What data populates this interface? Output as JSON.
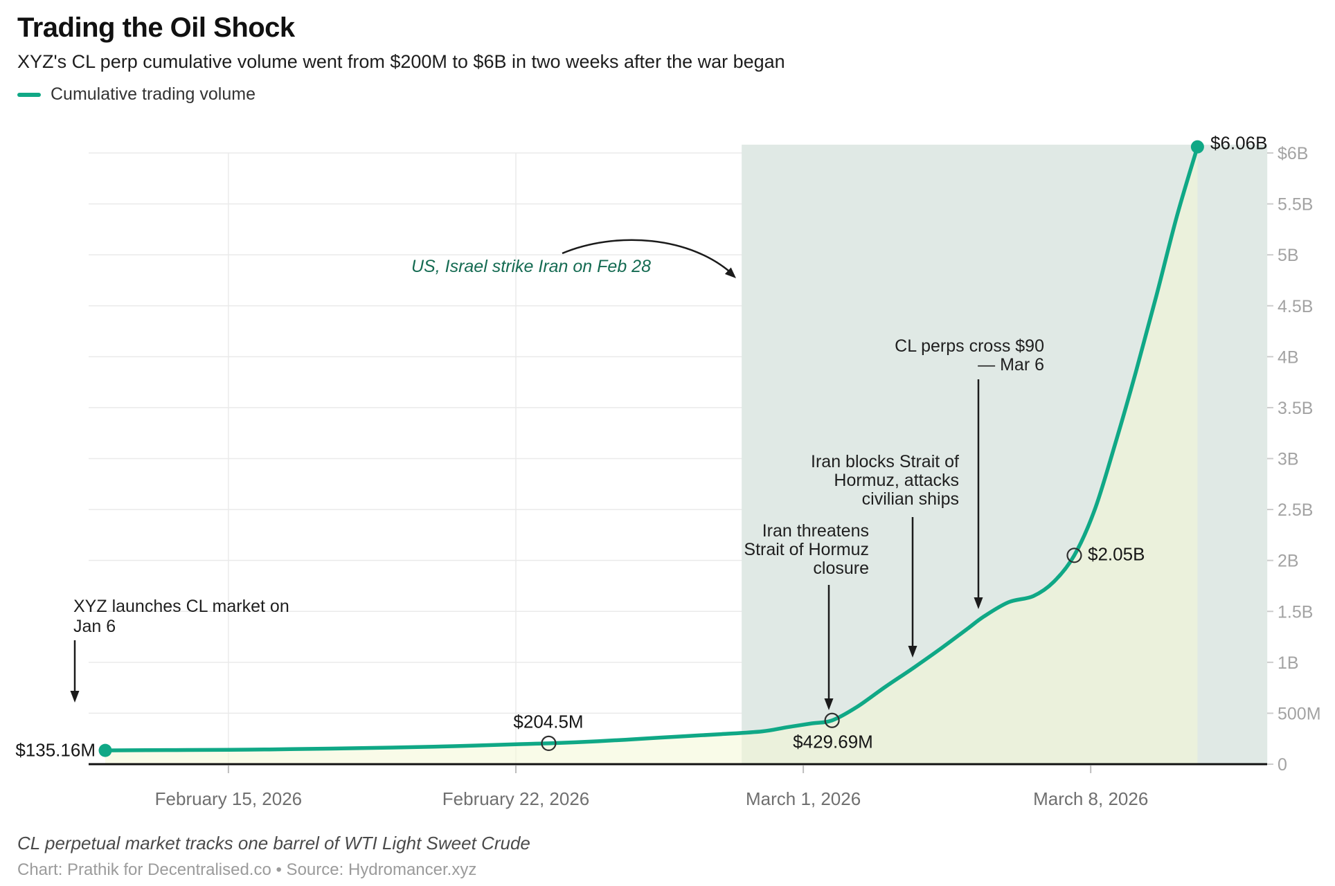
{
  "header": {
    "title": "Trading the Oil Shock",
    "subtitle": "XYZ's CL perp cumulative volume went from $200M to $6B in two weeks after the war began"
  },
  "legend": {
    "label": "Cumulative trading volume",
    "color": "#10A886"
  },
  "chart_data": {
    "type": "line",
    "title": "Trading the Oil Shock",
    "subtitle": "XYZ's CL perp cumulative volume went from $200M to $6B in two weeks after the war began",
    "x_start_date": "February 12, 2026",
    "x_unit": "days since February 12, 2026",
    "y_unit": "cumulative trading volume, USD millions",
    "ylim_millions": [
      0,
      6000
    ],
    "grid": "horizontal and weekly vertical, hidden inside shaded war region",
    "legend_position": "top-left",
    "series": [
      {
        "name": "Cumulative trading volume",
        "color": "#10A886",
        "points": [
          [
            0,
            135.16
          ],
          [
            1,
            137
          ],
          [
            2,
            139
          ],
          [
            3,
            141
          ],
          [
            4,
            145
          ],
          [
            5,
            150
          ],
          [
            6,
            156
          ],
          [
            7,
            163
          ],
          [
            8,
            172
          ],
          [
            9,
            183
          ],
          [
            10,
            196
          ],
          [
            10.8,
            204.5
          ],
          [
            12,
            225
          ],
          [
            13,
            248
          ],
          [
            14,
            272
          ],
          [
            15,
            295
          ],
          [
            16,
            322
          ],
          [
            16.6,
            362
          ],
          [
            17.2,
            400
          ],
          [
            17.7,
            429.69
          ],
          [
            18.3,
            560
          ],
          [
            19,
            760
          ],
          [
            19.7,
            950
          ],
          [
            20.4,
            1150
          ],
          [
            21,
            1330
          ],
          [
            21.4,
            1450
          ],
          [
            22,
            1590
          ],
          [
            22.6,
            1650
          ],
          [
            23.1,
            1790
          ],
          [
            23.6,
            2050
          ],
          [
            24.1,
            2500
          ],
          [
            24.6,
            3150
          ],
          [
            25.1,
            3850
          ],
          [
            25.6,
            4600
          ],
          [
            26.1,
            5380
          ],
          [
            26.6,
            6060
          ]
        ]
      }
    ],
    "y_axis": {
      "side": "right",
      "ticks": [
        {
          "label": "$6B",
          "value": 6000
        },
        {
          "label": "5.5B",
          "value": 5500
        },
        {
          "label": "5B",
          "value": 5000
        },
        {
          "label": "4.5B",
          "value": 4500
        },
        {
          "label": "4B",
          "value": 4000
        },
        {
          "label": "3.5B",
          "value": 3500
        },
        {
          "label": "3B",
          "value": 3000
        },
        {
          "label": "2.5B",
          "value": 2500
        },
        {
          "label": "2B",
          "value": 2000
        },
        {
          "label": "1.5B",
          "value": 1500
        },
        {
          "label": "1B",
          "value": 1000
        },
        {
          "label": "500M",
          "value": 500
        },
        {
          "label": "0",
          "value": 0
        }
      ]
    },
    "x_axis": {
      "ticks": [
        {
          "label": "February 15, 2026",
          "day": 3
        },
        {
          "label": "February 22, 2026",
          "day": 10
        },
        {
          "label": "March 1, 2026",
          "day": 17
        },
        {
          "label": "March 8, 2026",
          "day": 24
        }
      ]
    },
    "war_region": {
      "from_day": 15.5,
      "to_day": 28.3,
      "meaning": "period after US/Israel strike Iran on Feb 28"
    },
    "point_labels": [
      {
        "text": "$135.16M",
        "day": 0,
        "value_m": 135.16,
        "marker": "filled"
      },
      {
        "text": "$204.5M",
        "day": 10.8,
        "value_m": 204.5,
        "marker": "open"
      },
      {
        "text": "$429.69M",
        "day": 17.7,
        "value_m": 429.69,
        "marker": "open"
      },
      {
        "text": "$2.05B",
        "day": 23.6,
        "value_m": 2050,
        "marker": "open"
      },
      {
        "text": "$6.06B",
        "day": 26.6,
        "value_m": 6060,
        "marker": "filled"
      }
    ],
    "annotations": [
      {
        "id": "launch",
        "lines": [
          "XYZ launches CL market on",
          "Jan 6"
        ]
      },
      {
        "id": "strike",
        "lines": [
          "US, Israel strike Iran on Feb 28"
        ]
      },
      {
        "id": "threat",
        "lines": [
          "Iran threatens",
          "Strait of Hormuz",
          "closure"
        ]
      },
      {
        "id": "blocks",
        "lines": [
          "Iran blocks Strait of",
          "Hormuz, attacks",
          "civilian ships"
        ]
      },
      {
        "id": "cross90",
        "lines": [
          "CL perps cross $90",
          "— Mar 6"
        ]
      }
    ],
    "colors": {
      "line": "#10A886",
      "area": "rgba(244,248,214,0.55)",
      "war": "#E0E9E5",
      "grid": "#EAEAEA",
      "axis": "#111111",
      "tick": "#CCCCCC",
      "date_tick": "#BDBDBD",
      "ylabel": "#A3A3A3",
      "xlabel": "#6F6F6F",
      "arrow": "#1B1B1B",
      "open_marker": "#2F2F2F"
    }
  },
  "footer": {
    "note": "CL perpetual market tracks one barrel of WTI Light Sweet Crude",
    "credit": "Chart: Prathik for Decentralised.co • Source: Hydromancer.xyz"
  }
}
